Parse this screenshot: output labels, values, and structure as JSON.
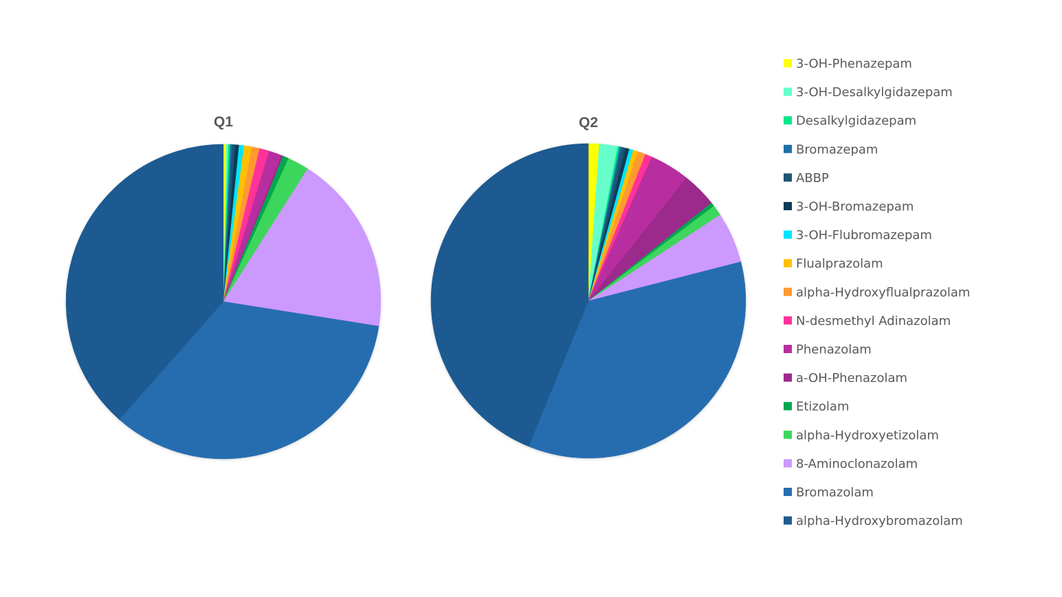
{
  "chart_data": {
    "type": "pie",
    "legend_position": "right",
    "categories": [
      "3-OH-Phenazepam",
      "3-OH-Desalkylgidazepam",
      "Desalkylgidazepam",
      "Bromazepam",
      "ABBP",
      "3-OH-Bromazepam",
      "3-OH-Flubromazepam",
      "Flualprazolam",
      "alpha-Hydroxyflualprazolam",
      "N-desmethyl Adinazolam",
      "Phenazolam",
      "a-OH-Phenazolam",
      "Etizolam",
      "alpha-Hydroxyetizolam",
      "8-Aminoclonazolam",
      "Bromazolam",
      "alpha-Hydroxybromazolam"
    ],
    "colors": [
      "#FFFF00",
      "#66FFCC",
      "#00E68A",
      "#1F6FA8",
      "#1F5673",
      "#0E3B57",
      "#00E5FF",
      "#FFC000",
      "#FF9933",
      "#FF3399",
      "#B82FA0",
      "#9C2A8C",
      "#00A650",
      "#3DD65C",
      "#CC99FF",
      "#276DB0",
      "#1F5A91"
    ],
    "charts": [
      {
        "title": "Q1",
        "values": [
          0.3,
          0.2,
          0.2,
          0.2,
          0.3,
          0.4,
          0.5,
          0.8,
          0.8,
          1.0,
          1.3,
          0.2,
          0.6,
          2.2,
          18.5,
          34.0,
          38.5
        ]
      },
      {
        "title": "Q2",
        "values": [
          1.1,
          1.9,
          0.2,
          0.2,
          0.4,
          0.4,
          0.4,
          0.5,
          0.8,
          0.7,
          4.1,
          3.6,
          0.4,
          1.1,
          5.2,
          35.2,
          43.8
        ]
      }
    ]
  }
}
